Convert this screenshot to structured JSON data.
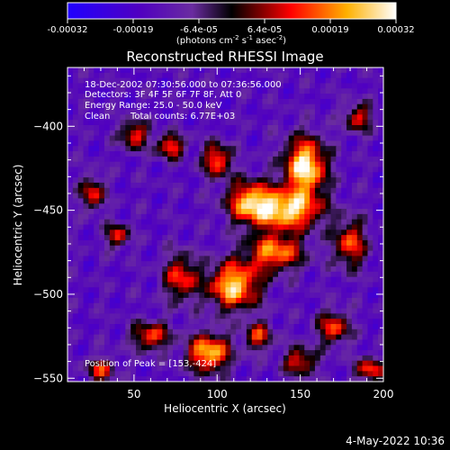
{
  "chart_data": {
    "type": "heatmap",
    "title": "Reconstructed RHESSI Image",
    "xlabel": "Heliocentric X (arcsec)",
    "ylabel": "Heliocentric Y (arcsec)",
    "xlim": [
      10,
      200
    ],
    "ylim": [
      -552,
      -365
    ],
    "x_ticks": [
      50,
      100,
      150,
      200
    ],
    "y_ticks": [
      -400,
      -450,
      -500,
      -550
    ],
    "colorbar": {
      "range": [
        -0.00032,
        0.00032
      ],
      "ticks": [
        "-0.00032",
        "-0.00019",
        "-6.4e-05",
        "6.4e-05",
        "0.00019",
        "0.00032"
      ],
      "label_main": "(photons cm",
      "label_exp1": "-2",
      "label_mid1": " s",
      "label_exp2": "-1",
      "label_mid2": " asec",
      "label_exp3": "-2",
      "label_end": ")",
      "colors": [
        "#2000ff",
        "#5000c0",
        "#6a2ca0",
        "#000000",
        "#ff0000",
        "#ffb000",
        "#ffffff"
      ]
    },
    "annotations": {
      "line1": "18-Dec-2002 07:30:56.000 to 07:36:56.000",
      "line2": "Detectors: 3F 4F 5F 6F 7F 8F, Att 0",
      "line3": "Energy Range: 25.0 - 50.0 keV",
      "line4_clean": "Clean",
      "line4_counts": "Total counts: 6.77E+03",
      "peak": "Position of Peak = [153,-424]"
    },
    "peak_position": [
      153,
      -424
    ],
    "sources": [
      {
        "x": 153,
        "y": -424,
        "amp": 0.00032,
        "sx": 9,
        "sy": 12
      },
      {
        "x": 143,
        "y": -450,
        "amp": 0.00026,
        "sx": 14,
        "sy": 8
      },
      {
        "x": 120,
        "y": -445,
        "amp": 0.00022,
        "sx": 10,
        "sy": 9
      },
      {
        "x": 100,
        "y": -420,
        "amp": 0.00018,
        "sx": 6,
        "sy": 7
      },
      {
        "x": 110,
        "y": -495,
        "amp": 0.00027,
        "sx": 11,
        "sy": 10
      },
      {
        "x": 135,
        "y": -475,
        "amp": 0.0002,
        "sx": 12,
        "sy": 8
      },
      {
        "x": 95,
        "y": -535,
        "amp": 0.00026,
        "sx": 9,
        "sy": 8
      },
      {
        "x": 72,
        "y": -412,
        "amp": 0.00016,
        "sx": 6,
        "sy": 5
      },
      {
        "x": 50,
        "y": -405,
        "amp": 0.00014,
        "sx": 6,
        "sy": 6
      },
      {
        "x": 25,
        "y": -440,
        "amp": 0.00013,
        "sx": 5,
        "sy": 7
      },
      {
        "x": 40,
        "y": -465,
        "amp": 0.00013,
        "sx": 5,
        "sy": 5
      },
      {
        "x": 78,
        "y": -490,
        "amp": 0.00014,
        "sx": 7,
        "sy": 10
      },
      {
        "x": 60,
        "y": -525,
        "amp": 0.00015,
        "sx": 8,
        "sy": 6
      },
      {
        "x": 180,
        "y": -470,
        "amp": 0.00015,
        "sx": 7,
        "sy": 10
      },
      {
        "x": 170,
        "y": -520,
        "amp": 0.00014,
        "sx": 7,
        "sy": 7
      },
      {
        "x": 192,
        "y": -545,
        "amp": 0.00016,
        "sx": 6,
        "sy": 5
      },
      {
        "x": 150,
        "y": -540,
        "amp": 0.00013,
        "sx": 7,
        "sy": 6
      },
      {
        "x": 30,
        "y": -545,
        "amp": 0.00012,
        "sx": 6,
        "sy": 5
      },
      {
        "x": 185,
        "y": -395,
        "amp": 0.00011,
        "sx": 6,
        "sy": 6
      },
      {
        "x": 125,
        "y": -525,
        "amp": 0.00012,
        "sx": 6,
        "sy": 6
      }
    ]
  },
  "footer": {
    "date": "4-May-2022 10:36"
  }
}
